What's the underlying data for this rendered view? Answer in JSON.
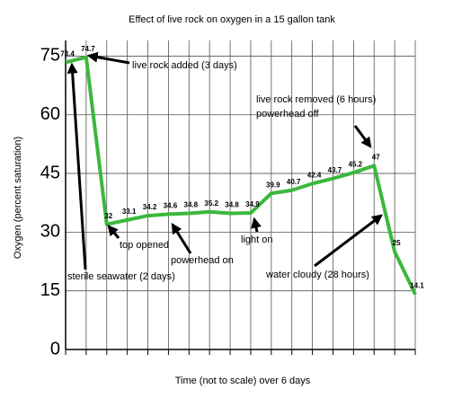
{
  "chart_data": {
    "type": "line",
    "title": "Effect of live rock on oxygen in a 15 gallon tank",
    "x_label": "Time (not to scale) over 6 days",
    "y_label": "Oxygen (percent saturation)",
    "categories": [
      null,
      null,
      null,
      null,
      null,
      null,
      null,
      null,
      null,
      null,
      null,
      null,
      null,
      null,
      null,
      null,
      null,
      null
    ],
    "values": [
      73.4,
      74.7,
      32,
      33.1,
      34.2,
      34.6,
      34.8,
      35.2,
      34.8,
      34.9,
      39.9,
      40.7,
      42.4,
      43.7,
      45.2,
      47,
      25,
      14.1
    ],
    "color": "#3cb83c",
    "ylim": [
      0,
      79
    ],
    "yticks": [
      0,
      15,
      30,
      45,
      60,
      75
    ],
    "grid": true,
    "annotations": [
      "live rock added (3 days)",
      "sterile seawater (2 days)",
      "top opened",
      "powerhead on",
      "light on",
      "live rock removed (6 hours)",
      "powerhead off",
      "water cloudy (28 hours)"
    ]
  }
}
